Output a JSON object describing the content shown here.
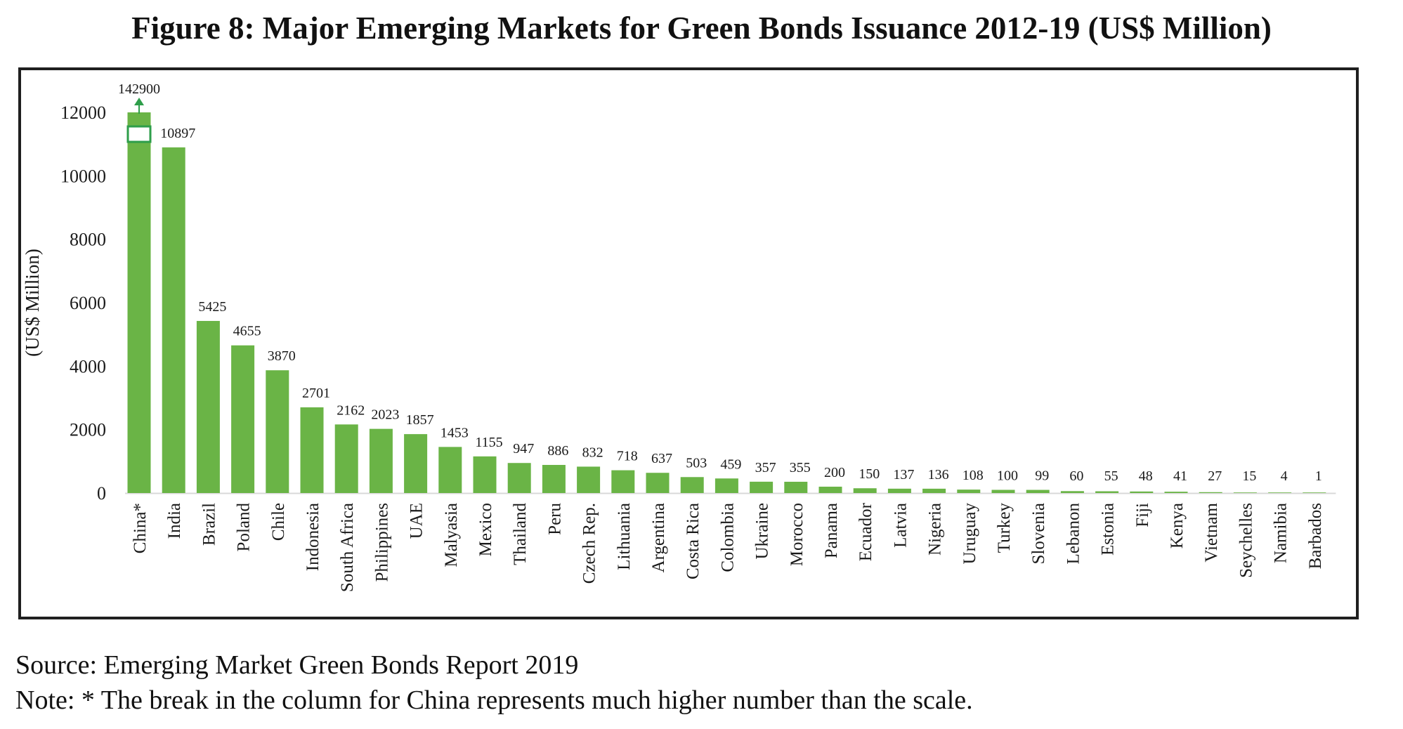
{
  "title": "Figure 8: Major Emerging Markets for Green Bonds Issuance 2012-19 (US$ Million)",
  "source": "Source: Emerging Market Green Bonds Report 2019",
  "note": "Note: * The break in the column for China represents much higher number than the scale.",
  "colors": {
    "bar": "#6ab446",
    "break_marker": "#2e9e4a",
    "axis": "#d9d9d9",
    "frame": "#1f1f1f"
  },
  "chart_data": {
    "type": "bar",
    "ylabel": "(US$ Million)",
    "xlabel": "",
    "ylim": [
      0,
      12000
    ],
    "yticks": [
      0,
      2000,
      4000,
      6000,
      8000,
      10000,
      12000
    ],
    "grid": false,
    "legend": "none",
    "categories": [
      "China*",
      "India",
      "Brazil",
      "Poland",
      "Chile",
      "Indonesia",
      "South Africa",
      "Philippines",
      "UAE",
      "Malyasia",
      "Mexico",
      "Thailand",
      "Peru",
      "Czech Rep.",
      "Lithuania",
      "Argentina",
      "Costa Rica",
      "Colombia",
      "Ukraine",
      "Morocco",
      "Panama",
      "Ecuador",
      "Latvia",
      "Nigeria",
      "Uruguay",
      "Turkey",
      "Slovenia",
      "Lebanon",
      "Estonia",
      "Fiji",
      "Kenya",
      "Vietnam",
      "Seychelles",
      "Namibia",
      "Barbados"
    ],
    "values": [
      142900,
      10897,
      5425,
      4655,
      3870,
      2701,
      2162,
      2023,
      1857,
      1453,
      1155,
      947,
      886,
      832,
      718,
      637,
      503,
      459,
      357,
      355,
      200,
      150,
      137,
      136,
      108,
      100,
      99,
      60,
      55,
      48,
      41,
      27,
      15,
      4,
      1
    ],
    "data_labels": [
      "142900",
      "10897",
      "5425",
      "4655",
      "3870",
      "2701",
      "2162",
      "2023",
      "1857",
      "1453",
      "1155",
      "947",
      "886",
      "832",
      "718",
      "637",
      "503",
      "459",
      "357",
      "355",
      "200",
      "150",
      "137",
      "136",
      "108",
      "100",
      "99",
      "60",
      "55",
      "48",
      "41",
      "27",
      "15",
      "4",
      "1"
    ],
    "broken_bar_category": "China*"
  }
}
